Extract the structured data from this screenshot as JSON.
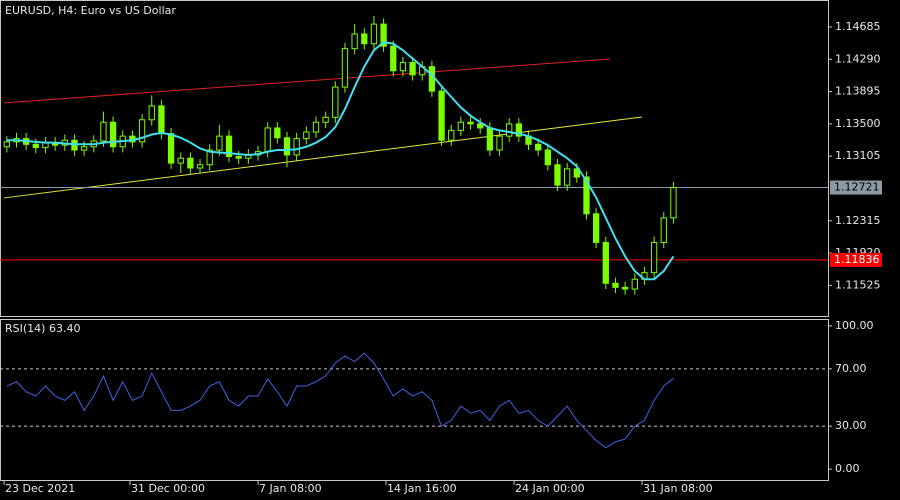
{
  "chart_data": [
    {
      "type": "candlestick",
      "title": "EURUSD, H4:  Euro vs US Dollar",
      "open": [
        1.1322,
        1.1328,
        1.1332,
        1.1325,
        1.1321,
        1.1327,
        1.1324,
        1.133,
        1.1318,
        1.1322,
        1.1329,
        1.1352,
        1.1322,
        1.1335,
        1.1328,
        1.1355,
        1.1372,
        1.1338,
        1.1302,
        1.1308,
        1.1296,
        1.13,
        1.1318,
        1.1335,
        1.131,
        1.1308,
        1.1312,
        1.1316,
        1.1345,
        1.1333,
        1.1312,
        1.1332,
        1.134,
        1.1352,
        1.1358,
        1.1395,
        1.1442,
        1.146,
        1.1448,
        1.1472,
        1.1445,
        1.1415,
        1.1425,
        1.141,
        1.142,
        1.139,
        1.133,
        1.1342,
        1.1352,
        1.135,
        1.1345,
        1.1318,
        1.1335,
        1.135,
        1.1335,
        1.1325,
        1.1318,
        1.13,
        1.1275,
        1.1295,
        1.1285,
        1.124,
        1.1205,
        1.1155,
        1.115,
        1.1148,
        1.116,
        1.1168,
        1.1205,
        1.1235
      ],
      "high": [
        1.1335,
        1.1339,
        1.1339,
        1.1332,
        1.1334,
        1.1334,
        1.1337,
        1.1337,
        1.1329,
        1.1336,
        1.1365,
        1.1359,
        1.1342,
        1.1342,
        1.1362,
        1.1385,
        1.1379,
        1.1345,
        1.1315,
        1.1315,
        1.1307,
        1.1325,
        1.1349,
        1.1342,
        1.1317,
        1.1319,
        1.1323,
        1.1352,
        1.1352,
        1.134,
        1.1339,
        1.1347,
        1.1359,
        1.1365,
        1.1402,
        1.1449,
        1.1472,
        1.1467,
        1.1482,
        1.1479,
        1.1452,
        1.1432,
        1.1432,
        1.1427,
        1.1427,
        1.1397,
        1.1349,
        1.1359,
        1.1359,
        1.1357,
        1.1352,
        1.1342,
        1.1357,
        1.1357,
        1.1342,
        1.1332,
        1.1325,
        1.1307,
        1.1302,
        1.1302,
        1.1292,
        1.1247,
        1.1212,
        1.1162,
        1.1157,
        1.1167,
        1.1175,
        1.1212,
        1.1242,
        1.1279
      ],
      "low": [
        1.1315,
        1.1321,
        1.1318,
        1.1314,
        1.1314,
        1.1317,
        1.1317,
        1.1311,
        1.1311,
        1.1315,
        1.1322,
        1.1315,
        1.1315,
        1.1321,
        1.1321,
        1.1348,
        1.1331,
        1.1295,
        1.129,
        1.1289,
        1.1289,
        1.1293,
        1.1311,
        1.1303,
        1.1301,
        1.1301,
        1.1305,
        1.1309,
        1.1326,
        1.1297,
        1.1305,
        1.1325,
        1.1333,
        1.1345,
        1.1351,
        1.1388,
        1.1435,
        1.1441,
        1.1441,
        1.1438,
        1.1408,
        1.1408,
        1.1403,
        1.1403,
        1.1383,
        1.1323,
        1.1323,
        1.1335,
        1.1343,
        1.1338,
        1.1311,
        1.1311,
        1.1328,
        1.1328,
        1.1318,
        1.1311,
        1.1293,
        1.1268,
        1.1268,
        1.1278,
        1.1233,
        1.1198,
        1.1148,
        1.1143,
        1.1141,
        1.1141,
        1.1153,
        1.1161,
        1.1198,
        1.1228
      ],
      "close": [
        1.1328,
        1.1332,
        1.1325,
        1.1321,
        1.1327,
        1.1324,
        1.133,
        1.1318,
        1.1322,
        1.1329,
        1.1352,
        1.1322,
        1.1335,
        1.1328,
        1.1355,
        1.1372,
        1.1338,
        1.1302,
        1.1308,
        1.1296,
        1.13,
        1.1318,
        1.1335,
        1.131,
        1.1308,
        1.1312,
        1.1316,
        1.1345,
        1.1333,
        1.1312,
        1.1332,
        1.134,
        1.1352,
        1.1358,
        1.1395,
        1.1442,
        1.146,
        1.1448,
        1.1472,
        1.1445,
        1.1415,
        1.1425,
        1.141,
        1.142,
        1.139,
        1.133,
        1.1342,
        1.1352,
        1.135,
        1.1345,
        1.1318,
        1.1335,
        1.135,
        1.1335,
        1.1325,
        1.1318,
        1.13,
        1.1275,
        1.1295,
        1.1285,
        1.124,
        1.1205,
        1.1155,
        1.115,
        1.1148,
        1.116,
        1.1168,
        1.1205,
        1.1235,
        1.1272
      ],
      "bull_color": "#000000",
      "bear_color": "#7cfc00",
      "wick_color": "#7cfc00",
      "ma": {
        "color": "#40e0f0",
        "values": [
          1.133,
          1.133,
          1.1329,
          1.1328,
          1.1327,
          1.1327,
          1.1326,
          1.1325,
          1.1325,
          1.1325,
          1.1327,
          1.1328,
          1.1329,
          1.133,
          1.1333,
          1.1337,
          1.1339,
          1.1337,
          1.1333,
          1.1327,
          1.132,
          1.1316,
          1.1315,
          1.1314,
          1.1313,
          1.1312,
          1.1313,
          1.1316,
          1.1318,
          1.1318,
          1.1319,
          1.1322,
          1.1327,
          1.1334,
          1.1346,
          1.1368,
          1.1395,
          1.142,
          1.144,
          1.145,
          1.1448,
          1.144,
          1.143,
          1.142,
          1.141,
          1.1396,
          1.1383,
          1.137,
          1.136,
          1.1352,
          1.1345,
          1.1342,
          1.134,
          1.1338,
          1.1335,
          1.133,
          1.1324,
          1.1316,
          1.1308,
          1.1298,
          1.128,
          1.126,
          1.1235,
          1.121,
          1.1188,
          1.117,
          1.116,
          1.116,
          1.117,
          1.1188
        ]
      },
      "trendlines": [
        {
          "color": "#e02020",
          "x": [
            -0.29,
            62.44
          ],
          "values": [
            1.13756,
            1.14294
          ]
        },
        {
          "color": "#e8e840",
          "x": [
            -0.29,
            65.75
          ],
          "values": [
            1.12594,
            1.13584
          ]
        }
      ],
      "price_lines": [
        {
          "value": 1.12721,
          "color": "#8c9aa5",
          "text_color": "#000000"
        },
        {
          "value": 1.11836,
          "color": "#ff0000",
          "text_color": "#ffffff"
        }
      ],
      "ylim": [
        1.1115,
        1.15015
      ],
      "yticks": [
        1.14685,
        {
          "value": 1.1429,
          "label": "1.14290"
        },
        1.13895,
        {
          "value": 1.135,
          "label": "1.13500"
        },
        1.13105,
        1.12315,
        {
          "value": 1.1192,
          "label": "1.11920"
        },
        1.11525
      ],
      "xlim": [
        -0.5,
        85
      ],
      "xticks": [
        {
          "value": -0.29,
          "label": "23 Dec 2021"
        },
        {
          "value": 12.75,
          "label": "31 Dec 00:00"
        },
        {
          "value": 26.0,
          "label": "7 Jan 08:00"
        },
        {
          "value": 39.25,
          "label": "14 Jan 16:00"
        },
        {
          "value": 52.5,
          "label": "24 Jan 00:00"
        },
        {
          "value": 65.75,
          "label": "31 Jan 08:00"
        }
      ]
    },
    {
      "type": "line",
      "title": "RSI(14) 63.40",
      "color": "#3c64e6",
      "values": [
        58,
        61,
        54,
        51,
        58,
        51,
        48,
        54,
        41,
        51,
        65,
        48,
        61,
        48,
        51,
        67,
        54,
        41,
        41,
        44,
        48,
        58,
        61,
        48,
        44,
        51,
        51,
        63,
        54,
        44,
        58,
        58,
        61,
        65,
        74,
        79,
        75,
        81,
        74,
        63,
        51,
        56,
        51,
        54,
        48,
        30,
        34,
        44,
        39,
        41,
        34,
        44,
        48,
        39,
        41,
        34,
        30,
        37,
        44,
        34,
        27,
        20,
        15,
        19,
        21,
        30,
        34,
        48,
        58,
        63.4
      ],
      "ylim": [
        -7.6,
        104.1
      ],
      "yticks": [
        {
          "value": 100,
          "label": "100.00"
        },
        {
          "value": 70,
          "label": "70.00"
        },
        {
          "value": 30,
          "label": "30.00"
        },
        {
          "value": 0,
          "label": "0.00"
        }
      ],
      "levels": [
        70,
        30
      ],
      "xlim": [
        -0.5,
        85
      ]
    }
  ]
}
